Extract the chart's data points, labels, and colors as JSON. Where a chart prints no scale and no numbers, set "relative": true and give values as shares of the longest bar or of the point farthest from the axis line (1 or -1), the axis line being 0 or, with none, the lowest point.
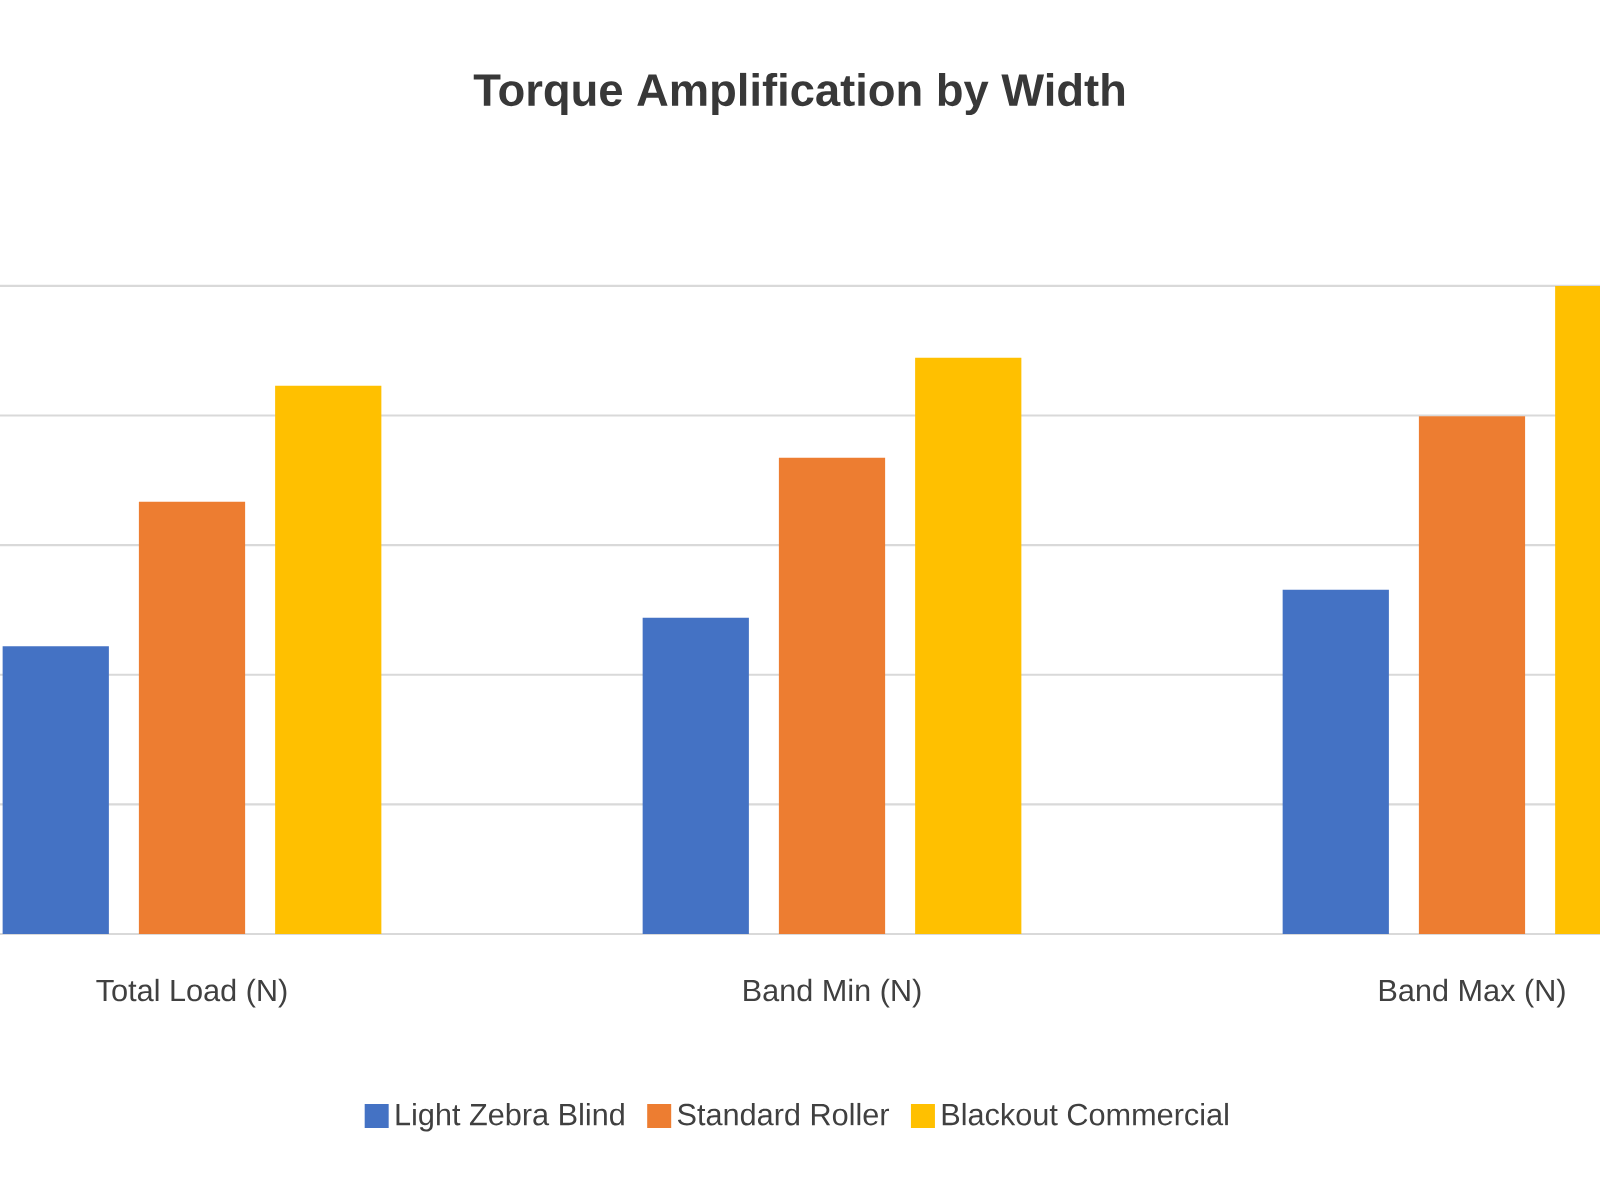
{
  "chart_data": {
    "type": "bar",
    "title": "Torque Amplification by Width",
    "categories": [
      "Total Load (N)",
      "Band Min (N)",
      "Band Max (N)"
    ],
    "relative": true,
    "grid": "y",
    "legend": "bottom",
    "series": [
      {
        "name": "Light Zebra Blind",
        "color": "#4472c4",
        "values": [
          0.444,
          0.488,
          0.531
        ]
      },
      {
        "name": "Standard Roller",
        "color": "#ed7d31",
        "values": [
          0.667,
          0.735,
          0.799
        ]
      },
      {
        "name": "Blackout Commercial",
        "color": "#ffc000",
        "values": [
          0.846,
          0.889,
          1
        ]
      }
    ]
  }
}
